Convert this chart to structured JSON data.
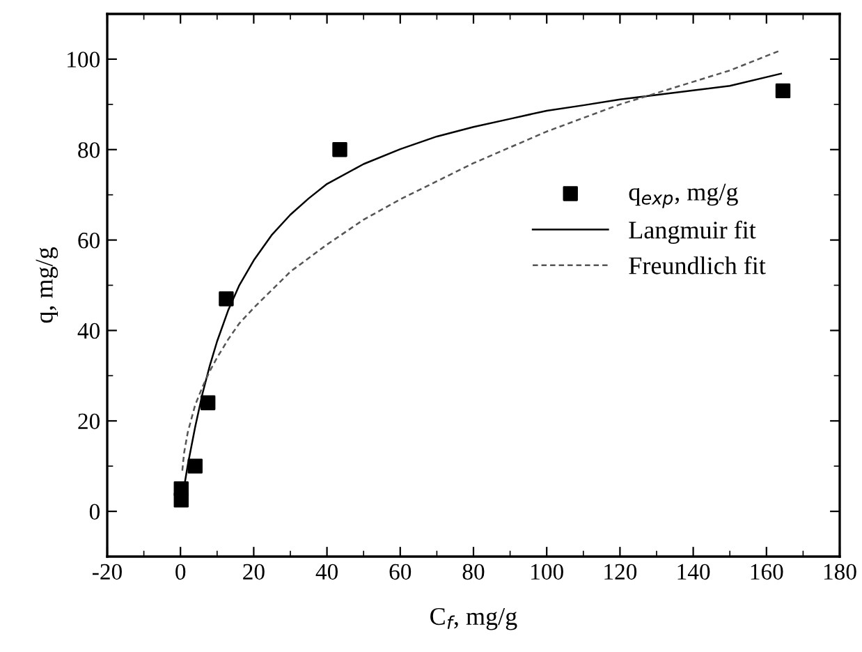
{
  "chart_data": {
    "type": "scatter",
    "xlabel": "C$_{f}$, mg/g",
    "ylabel": "q, mg/g",
    "xlim": [
      -20,
      180
    ],
    "xticks": [
      -20,
      0,
      20,
      40,
      60,
      80,
      100,
      120,
      140,
      160,
      180
    ],
    "ylim": [
      -10,
      110
    ],
    "yticks": [
      0,
      20,
      40,
      60,
      80,
      100
    ],
    "grid": false,
    "legend": "right",
    "series": [
      {
        "name": "q$_{exp}$, mg/g",
        "marker": "square",
        "color": "#000000",
        "x": [
          0.2,
          0.2,
          4,
          7.5,
          12.5,
          43.5,
          164.5
        ],
        "values": [
          2.5,
          5,
          10,
          24,
          47,
          80,
          93
        ]
      },
      {
        "name": "Langmuir fit",
        "type": "line",
        "marker": "none",
        "line_style": "solid",
        "color": "#000000",
        "x": [
          1,
          2,
          4,
          6,
          8,
          10,
          13,
          16,
          20,
          25,
          30,
          35,
          40,
          50,
          60,
          70,
          80,
          90,
          100,
          110,
          120,
          130,
          140,
          150,
          164
        ],
        "values": [
          5.4,
          10.3,
          18.6,
          26,
          32.2,
          37.6,
          44.4,
          49.9,
          55.5,
          61.2,
          65.6,
          69.2,
          72.4,
          76.8,
          80.1,
          82.9,
          85,
          86.8,
          88.6,
          89.8,
          91.1,
          92.1,
          93.1,
          94.1,
          96.8
        ]
      },
      {
        "name": "Freundlich fit",
        "type": "line",
        "marker": "none",
        "line_style": "dashed",
        "color": "#555555",
        "x": [
          0.5,
          1,
          2,
          4,
          6,
          8,
          10,
          13,
          16,
          20,
          25,
          30,
          40,
          50,
          60,
          70,
          80,
          90,
          100,
          110,
          120,
          130,
          140,
          150,
          164
        ],
        "values": [
          9,
          13,
          17.5,
          23.5,
          27.5,
          31,
          34,
          38,
          41.5,
          45,
          49,
          53,
          59,
          64.5,
          69,
          73,
          77,
          80.5,
          84,
          87,
          90,
          92.5,
          95,
          97.5,
          102
        ]
      }
    ]
  }
}
